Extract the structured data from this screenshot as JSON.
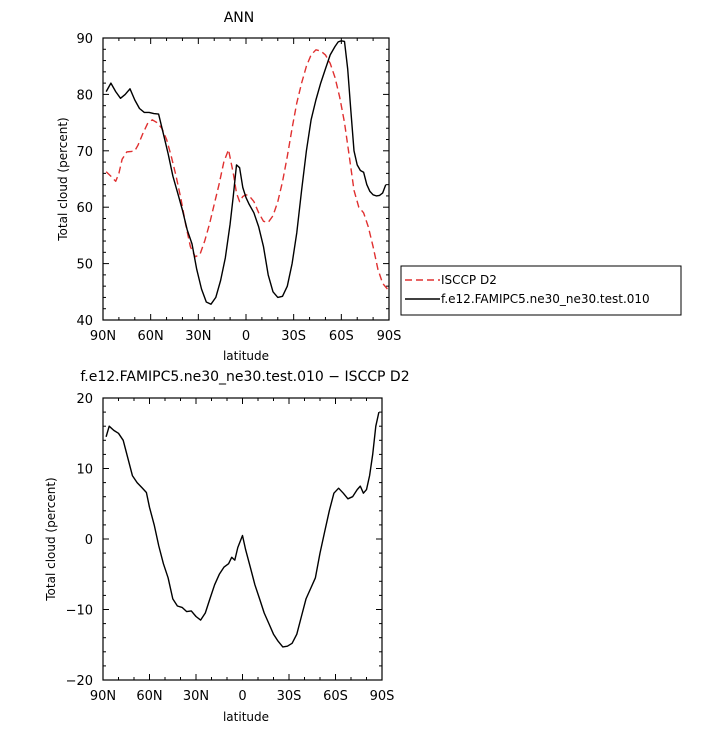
{
  "chart_data": [
    {
      "type": "line",
      "title": "ANN",
      "xlabel": "latitude",
      "ylabel": "Total cloud (percent)",
      "xlim": [
        90,
        -90
      ],
      "ylim": [
        40,
        90
      ],
      "xticks": [
        90,
        60,
        30,
        0,
        -30,
        -60,
        -90
      ],
      "xticklabels": [
        "90N",
        "60N",
        "30N",
        "0",
        "30S",
        "60S",
        "90S"
      ],
      "yticks": [
        40,
        50,
        60,
        70,
        80,
        90
      ],
      "yticklabels": [
        "40",
        "50",
        "60",
        "70",
        "80",
        "90"
      ],
      "legend": "outside-right",
      "series": [
        {
          "name": "ISCCP D2",
          "color": "#e03030",
          "dashed": true,
          "x": [
            88,
            85,
            82,
            80,
            78,
            75,
            72,
            70,
            68,
            65,
            62,
            59,
            56,
            53,
            50,
            47,
            44,
            41,
            38,
            35,
            32,
            29,
            26,
            23,
            20,
            17,
            14,
            11,
            8,
            6,
            4,
            2,
            0,
            -2,
            -5,
            -8,
            -11,
            -14,
            -17,
            -20,
            -23,
            -26,
            -29,
            -32,
            -35,
            -38,
            -41,
            -44,
            -47,
            -50,
            -53,
            -56,
            -59,
            -62,
            -65,
            -68,
            -71,
            -74,
            -77,
            -80,
            -83,
            -86,
            -89
          ],
          "y": [
            66.3,
            65.5,
            64.6,
            66.0,
            68.5,
            69.8,
            69.9,
            70.0,
            71.0,
            73.0,
            74.8,
            75.5,
            75.0,
            74.0,
            72.0,
            69.0,
            65.5,
            61.5,
            57.0,
            53.0,
            51.2,
            51.6,
            54.0,
            57.0,
            60.5,
            64.0,
            68.0,
            70.2,
            66.0,
            62.5,
            61.0,
            61.9,
            62.2,
            62.0,
            61.0,
            59.0,
            57.5,
            57.3,
            58.5,
            61.0,
            64.5,
            69.0,
            74.0,
            78.5,
            82.0,
            85.0,
            87.0,
            87.9,
            87.7,
            87.0,
            85.5,
            83.0,
            79.5,
            75.0,
            69.0,
            63.0,
            60.0,
            59.0,
            56.5,
            53.0,
            49.0,
            46.5,
            45.5
          ]
        },
        {
          "name": "f.e12.FAMIPC5.ne30_ne30.test.010",
          "color": "#000000",
          "dashed": false,
          "x": [
            88,
            85,
            82,
            79,
            76,
            73,
            70,
            67,
            64,
            61,
            58,
            55,
            52,
            49,
            46,
            43,
            40,
            37,
            34,
            31,
            28,
            25,
            22,
            19,
            16,
            13,
            10,
            8,
            6,
            4,
            2,
            0,
            -2,
            -5,
            -8,
            -11,
            -14,
            -17,
            -20,
            -23,
            -26,
            -29,
            -32,
            -35,
            -38,
            -41,
            -44,
            -47,
            -50,
            -53,
            -56,
            -58,
            -60,
            -62,
            -64,
            -66,
            -68,
            -70,
            -72,
            -74,
            -76,
            -78,
            -80,
            -82,
            -84,
            -86,
            -88
          ],
          "y": [
            80.5,
            82.0,
            80.5,
            79.3,
            80.0,
            81.0,
            79.0,
            77.5,
            76.8,
            76.8,
            76.6,
            76.5,
            73.0,
            69.5,
            65.5,
            62.5,
            59.5,
            56.0,
            53.5,
            49.0,
            45.5,
            43.2,
            42.8,
            44.0,
            47.0,
            51.0,
            57.0,
            62.0,
            67.5,
            67.0,
            63.5,
            61.7,
            60.5,
            59.0,
            56.5,
            53.0,
            48.0,
            45.0,
            44.0,
            44.2,
            46.0,
            50.0,
            55.5,
            63.0,
            70.0,
            75.5,
            79.0,
            82.0,
            84.5,
            87.0,
            88.5,
            89.3,
            89.5,
            89.4,
            84.5,
            77.0,
            70.0,
            67.5,
            66.5,
            66.2,
            64.0,
            62.8,
            62.2,
            62.0,
            62.1,
            62.5,
            64.0
          ]
        }
      ]
    },
    {
      "type": "line",
      "title": "f.e12.FAMIPC5.ne30_ne30.test.010 − ISCCP D2",
      "xlabel": "latitude",
      "ylabel": "Total cloud (percent)",
      "xlim": [
        90,
        -90
      ],
      "ylim": [
        -20,
        20
      ],
      "xticks": [
        90,
        60,
        30,
        0,
        -30,
        -60,
        -90
      ],
      "xticklabels": [
        "90N",
        "60N",
        "30N",
        "0",
        "30S",
        "60S",
        "90S"
      ],
      "yticks": [
        -20,
        -10,
        0,
        10,
        20
      ],
      "yticklabels": [
        "−20",
        "−10",
        "0",
        "10",
        "20"
      ],
      "series": [
        {
          "color": "#000000",
          "dashed": false,
          "x": [
            88,
            86,
            83,
            80,
            77,
            74,
            71,
            68,
            65,
            62,
            60,
            57,
            54,
            51,
            48,
            45,
            42,
            39,
            36,
            33,
            30,
            27,
            24,
            21,
            18,
            15,
            12,
            9,
            7,
            5,
            3,
            0,
            -2,
            -5,
            -8,
            -11,
            -14,
            -17,
            -20,
            -23,
            -26,
            -29,
            -32,
            -35,
            -38,
            -41,
            -44,
            -47,
            -50,
            -53,
            -56,
            -59,
            -62,
            -65,
            -68,
            -71,
            -74,
            -76,
            -78,
            -80,
            -82,
            -84,
            -86,
            -88
          ],
          "y": [
            14.5,
            16.0,
            15.4,
            15.0,
            14.0,
            11.5,
            9.0,
            8.0,
            7.3,
            6.6,
            4.5,
            2.0,
            -1.0,
            -3.5,
            -5.5,
            -8.5,
            -9.5,
            -9.7,
            -10.3,
            -10.2,
            -11.0,
            -11.5,
            -10.5,
            -8.5,
            -6.5,
            -5.0,
            -4.0,
            -3.5,
            -2.6,
            -3.0,
            -1.2,
            0.5,
            -1.5,
            -4.0,
            -6.5,
            -8.5,
            -10.5,
            -12.0,
            -13.5,
            -14.5,
            -15.3,
            -15.2,
            -14.8,
            -13.5,
            -11.0,
            -8.5,
            -7.0,
            -5.5,
            -2.0,
            1.0,
            4.0,
            6.5,
            7.2,
            6.5,
            5.7,
            6.0,
            7.0,
            7.5,
            6.5,
            7.0,
            9.0,
            12.0,
            16.0,
            18.0
          ]
        }
      ]
    }
  ]
}
